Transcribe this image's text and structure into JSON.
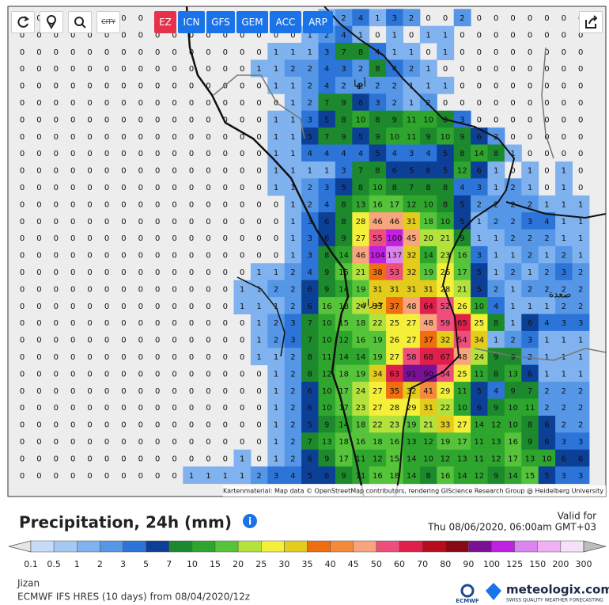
{
  "toolbar": {
    "city_button": "CITY",
    "models": [
      "EZ",
      "ICN",
      "GFS",
      "GEM",
      "ACC",
      "ARP"
    ]
  },
  "map": {
    "grid": [
      [
        0,
        0,
        0,
        0,
        0,
        0,
        0,
        0,
        0,
        0,
        0,
        0,
        0,
        0,
        0,
        0,
        0,
        0,
        1,
        2,
        4,
        1,
        3,
        2,
        0,
        0,
        2,
        0,
        0,
        0,
        0,
        0,
        0,
        0
      ],
      [
        0,
        0,
        0,
        0,
        0,
        0,
        0,
        0,
        0,
        0,
        0,
        0,
        0,
        0,
        0,
        0,
        0,
        1,
        2,
        4,
        1,
        0,
        1,
        0,
        1,
        1,
        0,
        0,
        0,
        0,
        0,
        0,
        0,
        0
      ],
      [
        0,
        0,
        0,
        0,
        0,
        0,
        0,
        0,
        0,
        0,
        0,
        0,
        0,
        0,
        0,
        1,
        1,
        1,
        3,
        7,
        8,
        4,
        1,
        1,
        0,
        1,
        0,
        0,
        0,
        0,
        0,
        0,
        0,
        0
      ],
      [
        0,
        0,
        0,
        0,
        0,
        0,
        0,
        0,
        0,
        0,
        0,
        0,
        0,
        0,
        1,
        1,
        2,
        2,
        4,
        3,
        2,
        8,
        4,
        2,
        1,
        0,
        0,
        0,
        0,
        0,
        0,
        0,
        0,
        0
      ],
      [
        0,
        0,
        0,
        0,
        0,
        0,
        0,
        0,
        0,
        0,
        0,
        0,
        0,
        0,
        0,
        1,
        1,
        2,
        4,
        2,
        2,
        2,
        2,
        1,
        1,
        1,
        0,
        0,
        0,
        0,
        0,
        0,
        0,
        0
      ],
      [
        0,
        0,
        0,
        0,
        0,
        0,
        0,
        0,
        0,
        0,
        0,
        0,
        0,
        0,
        0,
        0,
        1,
        2,
        7,
        9,
        6,
        3,
        2,
        1,
        2,
        0,
        0,
        0,
        0,
        0,
        0,
        0,
        0,
        0
      ],
      [
        0,
        0,
        0,
        0,
        0,
        0,
        0,
        0,
        0,
        0,
        0,
        0,
        0,
        0,
        0,
        1,
        1,
        3,
        5,
        8,
        10,
        8,
        9,
        11,
        10,
        8,
        3,
        0,
        0,
        0,
        0,
        0,
        0,
        0
      ],
      [
        0,
        0,
        0,
        0,
        0,
        0,
        0,
        0,
        0,
        0,
        0,
        0,
        0,
        0,
        0,
        1,
        1,
        5,
        7,
        9,
        5,
        9,
        10,
        11,
        9,
        10,
        9,
        6,
        2,
        0,
        0,
        0,
        0,
        0
      ],
      [
        0,
        0,
        0,
        0,
        0,
        0,
        0,
        0,
        0,
        0,
        0,
        0,
        0,
        0,
        0,
        1,
        1,
        4,
        4,
        4,
        4,
        5,
        4,
        3,
        4,
        5,
        8,
        14,
        8,
        1,
        0,
        0,
        0,
        0
      ],
      [
        0,
        0,
        0,
        0,
        0,
        0,
        0,
        0,
        0,
        0,
        0,
        0,
        0,
        0,
        0,
        1,
        1,
        1,
        1,
        3,
        7,
        8,
        6,
        5,
        6,
        5,
        12,
        6,
        1,
        0,
        1,
        0,
        1,
        0
      ],
      [
        0,
        0,
        0,
        0,
        0,
        0,
        0,
        0,
        0,
        0,
        0,
        0,
        0,
        0,
        0,
        1,
        1,
        2,
        3,
        5,
        8,
        10,
        8,
        7,
        8,
        8,
        4,
        3,
        1,
        2,
        1,
        0,
        1,
        0
      ],
      [
        0,
        0,
        0,
        0,
        0,
        0,
        0,
        0,
        0,
        0,
        0,
        0,
        0,
        0,
        0,
        0,
        1,
        2,
        4,
        8,
        13,
        16,
        17,
        12,
        10,
        8,
        5,
        2,
        2,
        2,
        2,
        1,
        1,
        1
      ],
      [
        0,
        0,
        0,
        0,
        0,
        0,
        0,
        0,
        0,
        0,
        0,
        0,
        0,
        0,
        0,
        0,
        1,
        3,
        6,
        8,
        28,
        46,
        46,
        31,
        18,
        10,
        5,
        1,
        2,
        2,
        3,
        4,
        1,
        1
      ],
      [
        0,
        0,
        0,
        0,
        0,
        0,
        0,
        0,
        0,
        0,
        0,
        0,
        0,
        0,
        0,
        0,
        1,
        3,
        6,
        9,
        27,
        55,
        100,
        45,
        20,
        21,
        9,
        1,
        1,
        2,
        2,
        2,
        1,
        1
      ],
      [
        0,
        0,
        0,
        0,
        0,
        0,
        0,
        0,
        0,
        0,
        0,
        0,
        0,
        0,
        0,
        0,
        1,
        3,
        8,
        14,
        46,
        104,
        137,
        32,
        14,
        23,
        16,
        3,
        1,
        1,
        2,
        1,
        2,
        1
      ],
      [
        0,
        0,
        0,
        0,
        0,
        0,
        0,
        0,
        0,
        0,
        0,
        0,
        0,
        0,
        1,
        1,
        2,
        4,
        9,
        15,
        21,
        38,
        53,
        32,
        19,
        26,
        17,
        5,
        1,
        2,
        1,
        2,
        3,
        2
      ],
      [
        0,
        0,
        0,
        0,
        0,
        0,
        0,
        0,
        0,
        0,
        0,
        0,
        0,
        1,
        1,
        2,
        2,
        6,
        9,
        14,
        19,
        31,
        31,
        31,
        31,
        28,
        21,
        5,
        2,
        1,
        2,
        2,
        2,
        2
      ],
      [
        0,
        0,
        0,
        0,
        0,
        0,
        0,
        0,
        0,
        0,
        0,
        0,
        0,
        1,
        1,
        1,
        2,
        6,
        16,
        18,
        24,
        33,
        37,
        48,
        64,
        52,
        26,
        10,
        4,
        1,
        1,
        1,
        2,
        2
      ],
      [
        0,
        0,
        0,
        0,
        0,
        0,
        0,
        0,
        0,
        0,
        0,
        0,
        0,
        0,
        1,
        2,
        3,
        7,
        10,
        15,
        18,
        22,
        25,
        27,
        48,
        59,
        65,
        25,
        8,
        1,
        6,
        4,
        3,
        3
      ],
      [
        0,
        0,
        0,
        0,
        0,
        0,
        0,
        0,
        0,
        0,
        0,
        0,
        0,
        0,
        1,
        2,
        3,
        7,
        10,
        12,
        16,
        19,
        26,
        27,
        37,
        32,
        54,
        34,
        1,
        2,
        3,
        1,
        1,
        1
      ],
      [
        0,
        0,
        0,
        0,
        0,
        0,
        0,
        0,
        0,
        0,
        0,
        0,
        0,
        0,
        1,
        1,
        2,
        8,
        11,
        14,
        14,
        19,
        27,
        58,
        68,
        67,
        48,
        24,
        9,
        9,
        2,
        1,
        1,
        1
      ],
      [
        0,
        0,
        0,
        0,
        0,
        0,
        0,
        0,
        0,
        0,
        0,
        0,
        0,
        0,
        0,
        1,
        2,
        8,
        12,
        18,
        19,
        34,
        63,
        91,
        90,
        54,
        25,
        11,
        8,
        13,
        6,
        1,
        1,
        1
      ],
      [
        0,
        0,
        0,
        0,
        0,
        0,
        0,
        0,
        0,
        0,
        0,
        0,
        0,
        0,
        0,
        1,
        2,
        6,
        10,
        17,
        24,
        27,
        35,
        32,
        41,
        29,
        11,
        5,
        4,
        9,
        7,
        2,
        2,
        2
      ],
      [
        0,
        0,
        0,
        0,
        0,
        0,
        0,
        0,
        0,
        0,
        0,
        0,
        0,
        0,
        0,
        1,
        2,
        6,
        10,
        17,
        23,
        27,
        28,
        29,
        31,
        22,
        10,
        6,
        9,
        10,
        11,
        2,
        2,
        2
      ],
      [
        0,
        0,
        0,
        0,
        0,
        0,
        0,
        0,
        0,
        0,
        0,
        0,
        0,
        0,
        0,
        1,
        2,
        5,
        9,
        14,
        18,
        22,
        23,
        19,
        21,
        33,
        27,
        14,
        12,
        10,
        8,
        6,
        2,
        2
      ],
      [
        0,
        0,
        0,
        0,
        0,
        0,
        0,
        0,
        0,
        0,
        0,
        0,
        0,
        0,
        0,
        1,
        2,
        7,
        13,
        18,
        16,
        18,
        16,
        13,
        12,
        19,
        17,
        11,
        13,
        16,
        9,
        6,
        3,
        3
      ],
      [
        0,
        0,
        0,
        0,
        0,
        0,
        0,
        0,
        0,
        0,
        0,
        0,
        0,
        1,
        0,
        1,
        2,
        6,
        9,
        17,
        11,
        12,
        15,
        14,
        10,
        12,
        13,
        11,
        12,
        17,
        13,
        10,
        6,
        6
      ],
      [
        0,
        0,
        0,
        0,
        0,
        0,
        0,
        0,
        0,
        0,
        1,
        1,
        1,
        1,
        2,
        3,
        4,
        5,
        6,
        9,
        11,
        16,
        18,
        14,
        8,
        16,
        14,
        12,
        9,
        14,
        15,
        5,
        3,
        3
      ]
    ],
    "places": [
      "أبها",
      "جيزان",
      "صعدة"
    ],
    "attribution": "Kartenmaterial: Map data © OpenStreetMap contributors, rendering GIScience Research Group @ Heidelberg University"
  },
  "legend": {
    "title": "Precipitation, 24h (mm)",
    "valid_label": "Valid for",
    "valid_time": "Thu 08/06/2020, 06:00am GMT+03",
    "thresholds": [
      0.1,
      0.5,
      1,
      2,
      3,
      5,
      7,
      10,
      15,
      20,
      25,
      30,
      35,
      40,
      45,
      50,
      60,
      70,
      80,
      90,
      100,
      125,
      150,
      200,
      300
    ],
    "colors": [
      "#c6dcf6",
      "#a6c9f3",
      "#7fb2ee",
      "#5596e6",
      "#2c74d8",
      "#0c3f96",
      "#1c8a2c",
      "#2ea62e",
      "#56c43a",
      "#b4e23c",
      "#f4f03a",
      "#e4cc1c",
      "#ee6e10",
      "#f48a3a",
      "#f8a47c",
      "#ee4e7c",
      "#e0204a",
      "#b80c1c",
      "#880814",
      "#7a1096",
      "#c020e0",
      "#dc84f0",
      "#f0b0f4",
      "#f6e2f8",
      "#bdbdbd"
    ]
  },
  "footer": {
    "location": "Jizan",
    "model_run": "ECMWF IFS HRES (10 days) from 08/04/2020/12z",
    "brand": "meteologix.com",
    "tagline": "SWISS QUALITY WEATHER FORECASTING",
    "ecmwf": "ECMWF"
  }
}
